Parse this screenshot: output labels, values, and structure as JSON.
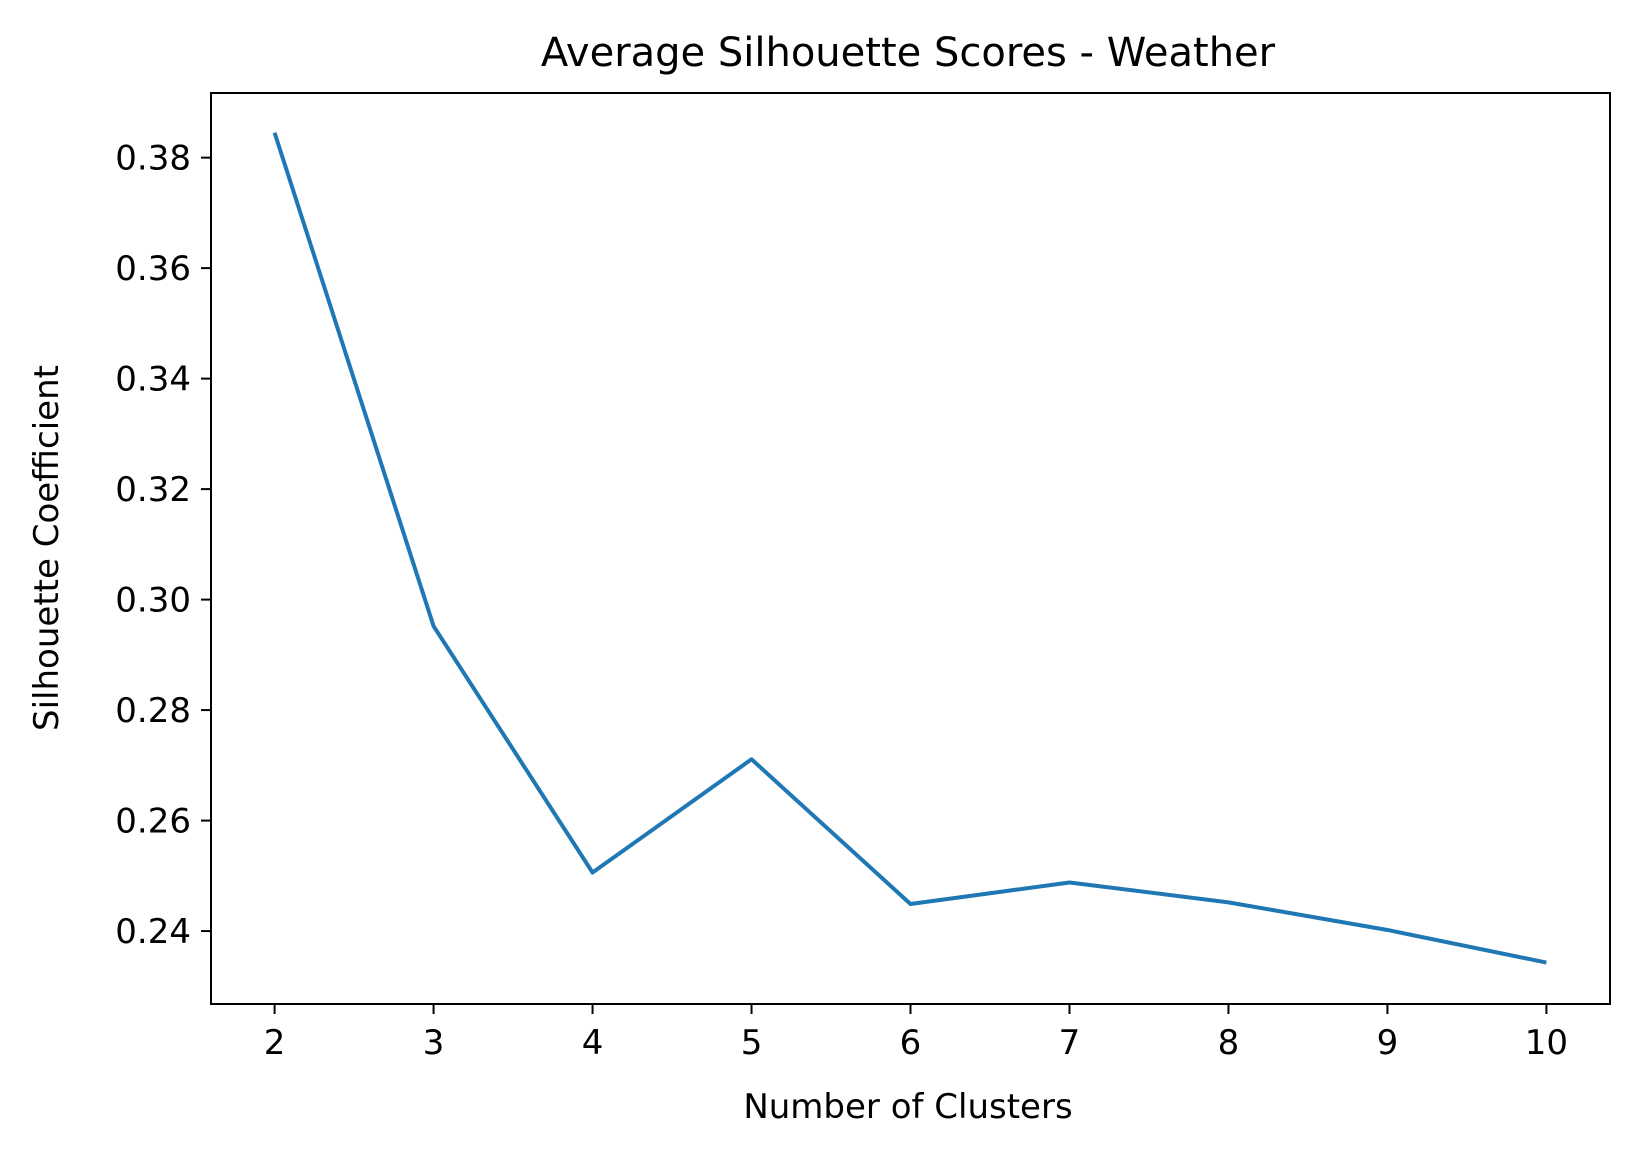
{
  "chart_data": {
    "type": "line",
    "title": "Average Silhouette Scores - Weather",
    "xlabel": "Number of Clusters",
    "ylabel": "Silhouette Coefficient",
    "x": [
      2,
      3,
      4,
      5,
      6,
      7,
      8,
      9,
      10
    ],
    "series": [
      {
        "values": [
          0.3845,
          0.2952,
          0.2506,
          0.2711,
          0.2449,
          0.2488,
          0.2452,
          0.2402,
          0.2343
        ],
        "color": "#1f77b4"
      }
    ],
    "xticks": [
      2,
      3,
      4,
      5,
      6,
      7,
      8,
      9,
      10
    ],
    "yticks": [
      "0.24",
      "0.26",
      "0.28",
      "0.30",
      "0.32",
      "0.34",
      "0.36",
      "0.38"
    ],
    "xlim": [
      1.6,
      10.4
    ],
    "ylim": [
      0.2268,
      0.3917
    ],
    "grid": false,
    "legend": "none"
  }
}
